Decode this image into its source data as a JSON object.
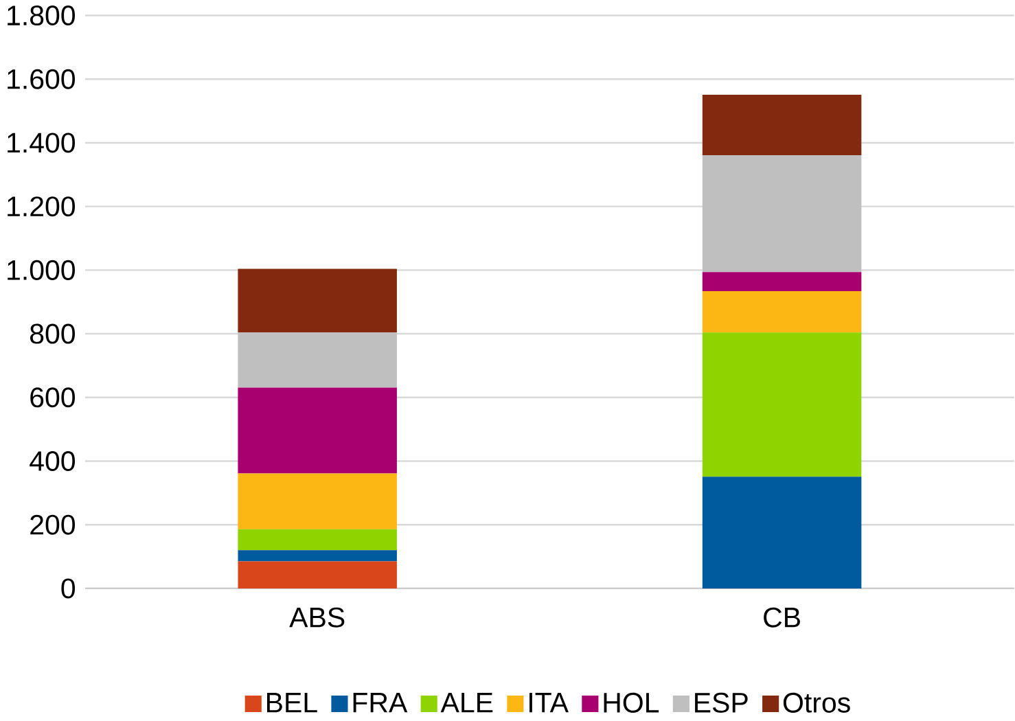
{
  "chart_data": {
    "type": "bar",
    "stacked": true,
    "categories": [
      "ABS",
      "CB"
    ],
    "series": [
      {
        "name": "BEL",
        "color": "#d9461b",
        "values": [
          85,
          0
        ]
      },
      {
        "name": "FRA",
        "color": "#005a9e",
        "values": [
          35,
          351
        ]
      },
      {
        "name": "ALE",
        "color": "#8fd400",
        "values": [
          66,
          453
        ]
      },
      {
        "name": "ITA",
        "color": "#fdb714",
        "values": [
          175,
          130
        ]
      },
      {
        "name": "HOL",
        "color": "#a8006f",
        "values": [
          270,
          60
        ]
      },
      {
        "name": "ESP",
        "color": "#bfbfbf",
        "values": [
          173,
          367
        ]
      },
      {
        "name": "Otros",
        "color": "#822910",
        "values": [
          200,
          190
        ]
      }
    ],
    "ylim": [
      0,
      1800
    ],
    "yticks": [
      0,
      200,
      400,
      600,
      800,
      {
        "value": 1000,
        "label": "1.000"
      },
      {
        "value": 1200,
        "label": "1.200"
      },
      {
        "value": 1400,
        "label": "1.400"
      },
      {
        "value": 1600,
        "label": "1.600"
      },
      {
        "value": 1800,
        "label": "1.800"
      }
    ],
    "grid": "y",
    "legend": "bottom"
  }
}
